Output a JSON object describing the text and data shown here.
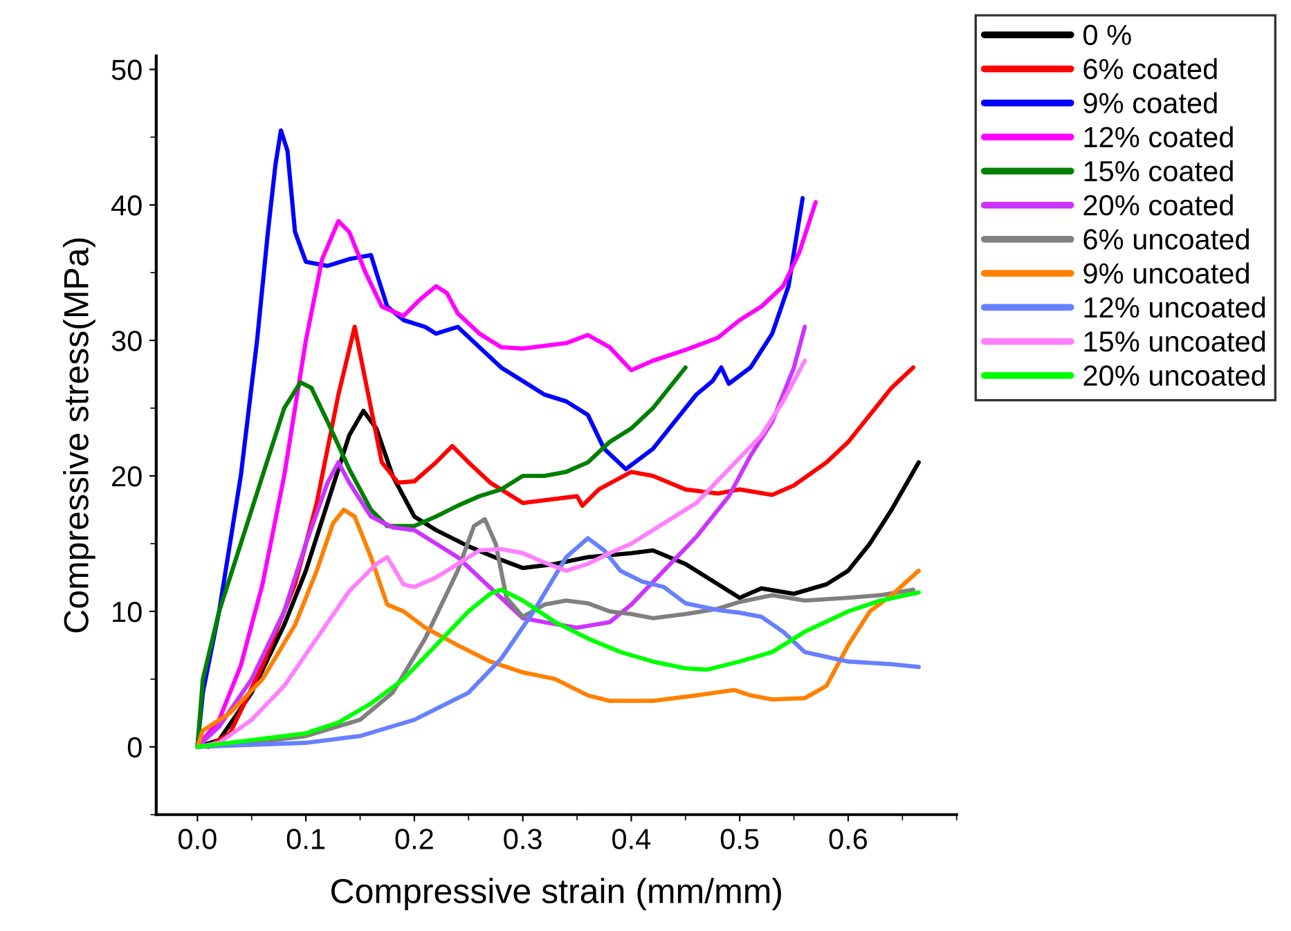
{
  "chart_data": {
    "type": "line",
    "xlabel": "Compressive strain (mm/mm)",
    "ylabel": "Compressive stress(MPa)",
    "xlim": [
      -0.038,
      0.7
    ],
    "ylim": [
      -5,
      51
    ],
    "xticks": [
      {
        "value": 0,
        "label": "0.0"
      },
      0.1,
      0.2,
      0.3,
      0.4,
      0.5,
      0.6
    ],
    "yticks": [
      0,
      10,
      20,
      30,
      40,
      50
    ],
    "legend": "top right",
    "grid": false,
    "line_style": "solid",
    "marker": "none",
    "series": [
      {
        "name": "0 %",
        "color": "#000000",
        "x": [
          0,
          0.02,
          0.05,
          0.08,
          0.1,
          0.12,
          0.14,
          0.153,
          0.165,
          0.18,
          0.2,
          0.22,
          0.25,
          0.28,
          0.3,
          0.33,
          0.36,
          0.4,
          0.42,
          0.45,
          0.48,
          0.5,
          0.52,
          0.55,
          0.58,
          0.6,
          0.62,
          0.64,
          0.665
        ],
        "values": [
          0,
          0.5,
          4,
          9,
          13,
          18,
          23,
          24.8,
          23.5,
          20,
          17,
          16,
          14.8,
          13.8,
          13.2,
          13.5,
          14,
          14.3,
          14.5,
          13.5,
          12,
          11,
          11.7,
          11.3,
          12,
          13,
          15,
          17.5,
          21
        ]
      },
      {
        "name": "6% coated",
        "color": "#ff0000",
        "x": [
          0.01,
          0.03,
          0.06,
          0.09,
          0.11,
          0.13,
          0.145,
          0.155,
          0.17,
          0.185,
          0.2,
          0.22,
          0.235,
          0.25,
          0.27,
          0.3,
          0.32,
          0.35,
          0.355,
          0.37,
          0.4,
          0.42,
          0.45,
          0.48,
          0.5,
          0.53,
          0.55,
          0.58,
          0.6,
          0.62,
          0.64,
          0.66
        ],
        "values": [
          0,
          1,
          6,
          12,
          18,
          26,
          31,
          27,
          21,
          19.5,
          19.6,
          21,
          22.2,
          21,
          19.5,
          18,
          18.2,
          18.5,
          17.8,
          19,
          20.3,
          20,
          19,
          18.7,
          19,
          18.6,
          19.3,
          21,
          22.5,
          24.5,
          26.5,
          28
        ]
      },
      {
        "name": "9% coated",
        "color": "#0000ff",
        "x": [
          0,
          0.005,
          0.02,
          0.04,
          0.055,
          0.065,
          0.072,
          0.077,
          0.083,
          0.09,
          0.1,
          0.12,
          0.14,
          0.16,
          0.165,
          0.175,
          0.19,
          0.21,
          0.22,
          0.24,
          0.26,
          0.28,
          0.3,
          0.32,
          0.34,
          0.36,
          0.375,
          0.395,
          0.42,
          0.44,
          0.46,
          0.475,
          0.483,
          0.49,
          0.51,
          0.53,
          0.545,
          0.558
        ],
        "values": [
          0,
          4,
          10,
          20,
          30,
          38,
          43,
          45.5,
          44,
          38,
          35.8,
          35.5,
          36,
          36.3,
          35,
          32.5,
          31.5,
          31,
          30.5,
          31,
          29.5,
          28,
          27,
          26,
          25.5,
          24.5,
          22,
          20.5,
          22,
          24,
          26,
          27,
          28,
          26.8,
          28,
          30.5,
          34,
          40.5
        ]
      },
      {
        "name": "12% coated",
        "color": "#ff00ff",
        "x": [
          0,
          0.02,
          0.04,
          0.06,
          0.08,
          0.1,
          0.115,
          0.13,
          0.14,
          0.155,
          0.17,
          0.19,
          0.205,
          0.22,
          0.23,
          0.24,
          0.26,
          0.28,
          0.3,
          0.32,
          0.34,
          0.36,
          0.38,
          0.4,
          0.42,
          0.45,
          0.48,
          0.5,
          0.52,
          0.54,
          0.555,
          0.57
        ],
        "values": [
          0,
          2,
          6,
          12,
          20,
          30,
          36,
          38.8,
          38,
          35,
          32.5,
          31.8,
          33,
          34,
          33.5,
          32,
          30.5,
          29.5,
          29.4,
          29.6,
          29.8,
          30.4,
          29.5,
          27.8,
          28.5,
          29.3,
          30.2,
          31.5,
          32.5,
          34,
          36.5,
          40.2
        ]
      },
      {
        "name": "15% coated",
        "color": "#007f00",
        "x": [
          0,
          0.005,
          0.02,
          0.04,
          0.06,
          0.08,
          0.095,
          0.105,
          0.12,
          0.14,
          0.16,
          0.175,
          0.2,
          0.22,
          0.24,
          0.26,
          0.28,
          0.3,
          0.32,
          0.34,
          0.36,
          0.38,
          0.4,
          0.42,
          0.44,
          0.45
        ],
        "values": [
          0,
          5,
          10,
          15,
          20,
          25,
          26.9,
          26.5,
          24,
          20.5,
          17.5,
          16.3,
          16.3,
          17,
          17.8,
          18.5,
          19,
          20,
          20,
          20.3,
          21,
          22.5,
          23.5,
          25,
          27,
          28
        ]
      },
      {
        "name": "20% coated",
        "color": "#cc33ff",
        "x": [
          0,
          0.02,
          0.05,
          0.08,
          0.1,
          0.12,
          0.13,
          0.14,
          0.16,
          0.18,
          0.2,
          0.22,
          0.24,
          0.26,
          0.28,
          0.3,
          0.32,
          0.35,
          0.38,
          0.4,
          0.43,
          0.46,
          0.49,
          0.51,
          0.53,
          0.55,
          0.56
        ],
        "values": [
          0,
          1.5,
          5,
          10,
          15,
          19.5,
          21,
          19.5,
          17,
          16.2,
          16,
          15,
          14,
          12.5,
          11,
          9.5,
          9.2,
          8.8,
          9.2,
          10.5,
          13,
          15.5,
          18.5,
          21.5,
          24,
          28,
          31
        ]
      },
      {
        "name": "6% uncoated",
        "color": "#808080",
        "x": [
          0,
          0.05,
          0.1,
          0.15,
          0.18,
          0.21,
          0.24,
          0.255,
          0.265,
          0.275,
          0.285,
          0.3,
          0.32,
          0.34,
          0.36,
          0.38,
          0.4,
          0.42,
          0.45,
          0.48,
          0.5,
          0.53,
          0.56,
          0.6,
          0.63,
          0.66
        ],
        "values": [
          0,
          0.3,
          0.8,
          2,
          4,
          8,
          13,
          16.3,
          16.8,
          15,
          11,
          9.6,
          10.5,
          10.8,
          10.6,
          10,
          9.8,
          9.5,
          9.8,
          10.2,
          10.7,
          11.2,
          10.8,
          11,
          11.2,
          11.6
        ]
      },
      {
        "name": "9% uncoated",
        "color": "#ff8000",
        "x": [
          0,
          0.005,
          0.03,
          0.06,
          0.09,
          0.11,
          0.125,
          0.135,
          0.145,
          0.16,
          0.175,
          0.19,
          0.21,
          0.24,
          0.27,
          0.3,
          0.33,
          0.36,
          0.38,
          0.42,
          0.46,
          0.495,
          0.51,
          0.53,
          0.56,
          0.58,
          0.6,
          0.62,
          0.64,
          0.665
        ],
        "values": [
          0,
          1.2,
          2.5,
          5,
          9,
          13,
          16.5,
          17.5,
          17,
          14,
          10.5,
          10,
          8.8,
          7.5,
          6.3,
          5.5,
          5,
          3.8,
          3.4,
          3.4,
          3.8,
          4.2,
          3.8,
          3.5,
          3.6,
          4.5,
          7.5,
          10,
          11.2,
          13
        ]
      },
      {
        "name": "12% uncoated",
        "color": "#6680ff",
        "x": [
          0,
          0.1,
          0.15,
          0.2,
          0.25,
          0.28,
          0.31,
          0.34,
          0.36,
          0.375,
          0.39,
          0.41,
          0.43,
          0.45,
          0.48,
          0.5,
          0.52,
          0.54,
          0.56,
          0.6,
          0.64,
          0.665
        ],
        "values": [
          0,
          0.3,
          0.8,
          2,
          4,
          6.5,
          10,
          14,
          15.4,
          14.5,
          13,
          12.2,
          11.8,
          10.6,
          10.1,
          9.9,
          9.6,
          8.5,
          7,
          6.3,
          6.1,
          5.9
        ]
      },
      {
        "name": "15% uncoated",
        "color": "#ff80ff",
        "x": [
          0,
          0.02,
          0.05,
          0.08,
          0.11,
          0.14,
          0.165,
          0.175,
          0.19,
          0.2,
          0.22,
          0.24,
          0.26,
          0.28,
          0.3,
          0.32,
          0.34,
          0.36,
          0.38,
          0.4,
          0.43,
          0.46,
          0.49,
          0.52,
          0.54,
          0.56
        ],
        "values": [
          0,
          0.3,
          2,
          4.5,
          8,
          11.5,
          13.5,
          14,
          12,
          11.8,
          12.5,
          13.5,
          14.5,
          14.6,
          14.3,
          13.6,
          13,
          13.5,
          14.3,
          15,
          16.5,
          18,
          20.5,
          23,
          25.5,
          28.5
        ]
      },
      {
        "name": "20% uncoated",
        "color": "#00ff00",
        "x": [
          0,
          0.05,
          0.1,
          0.13,
          0.16,
          0.19,
          0.22,
          0.25,
          0.27,
          0.28,
          0.3,
          0.33,
          0.36,
          0.39,
          0.42,
          0.45,
          0.47,
          0.5,
          0.53,
          0.56,
          0.6,
          0.63,
          0.665
        ],
        "values": [
          0,
          0.5,
          1,
          1.8,
          3.2,
          5,
          7.5,
          10,
          11.3,
          11.6,
          10.8,
          9.2,
          8,
          7,
          6.3,
          5.8,
          5.7,
          6.3,
          7,
          8.5,
          10,
          10.8,
          11.4
        ]
      }
    ]
  }
}
